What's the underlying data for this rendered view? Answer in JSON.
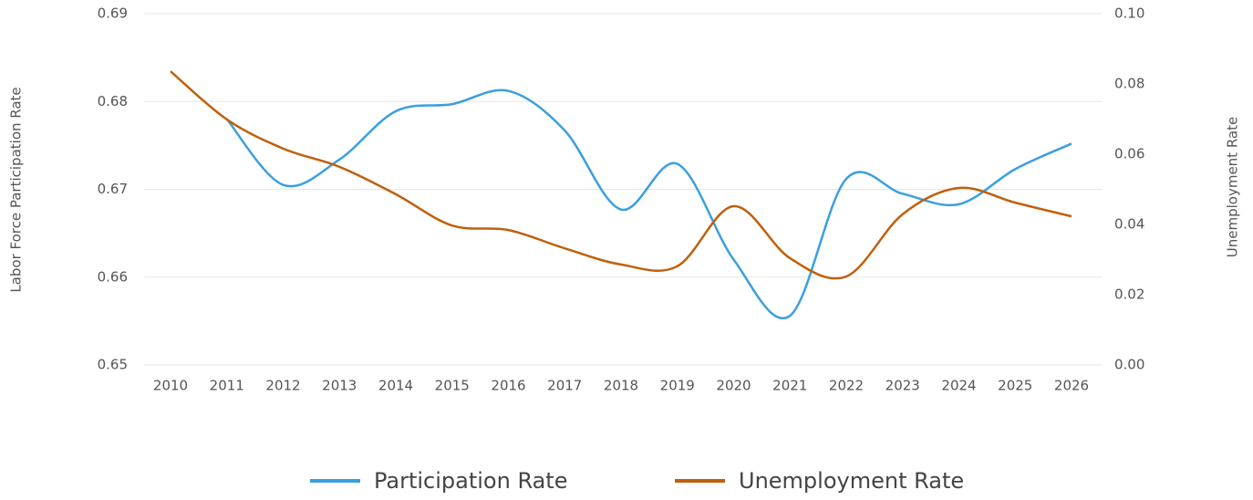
{
  "chart_data": {
    "type": "line",
    "x": [
      2010,
      2011,
      2012,
      2013,
      2014,
      2015,
      2016,
      2017,
      2018,
      2019,
      2020,
      2021,
      2022,
      2023,
      2024,
      2025,
      2026
    ],
    "series": [
      {
        "name": "Participation Rate",
        "color": "#3a9fe0",
        "values": [
          null,
          0.678,
          0.6705,
          0.6734,
          0.6789,
          0.6797,
          0.6812,
          0.6767,
          0.6677,
          0.6729,
          0.662,
          0.6556,
          0.6712,
          0.6695,
          0.6683,
          0.6723,
          0.6752
        ]
      },
      {
        "name": "Unemployment Rate",
        "color": "#c0600b",
        "axis": "y2",
        "values": [
          0.0836,
          0.0699,
          0.0616,
          0.0564,
          0.0486,
          0.0397,
          0.0384,
          0.0332,
          0.0286,
          0.0281,
          0.0452,
          0.0304,
          0.0252,
          0.0429,
          0.0504,
          0.0462,
          0.0423
        ]
      }
    ],
    "xlim": [
      2010,
      2026
    ],
    "xticks": [
      2010,
      2011,
      2012,
      2013,
      2014,
      2015,
      2016,
      2017,
      2018,
      2019,
      2020,
      2021,
      2022,
      2023,
      2024,
      2025,
      2026
    ],
    "ylabel": "Labor Force Participation Rate",
    "y2label": "Unemployment Rate",
    "ylim": [
      0.65,
      0.69
    ],
    "yticks": [
      0.65,
      0.66,
      0.67,
      0.68,
      0.69
    ],
    "y2lim": [
      0,
      0.1
    ],
    "y2ticks": [
      {
        "value": 0,
        "label": "0.00"
      },
      0.02,
      0.04,
      0.06,
      0.08,
      {
        "value": 0.1,
        "label": "0.10"
      }
    ],
    "grid": true,
    "legend": "bottom"
  }
}
